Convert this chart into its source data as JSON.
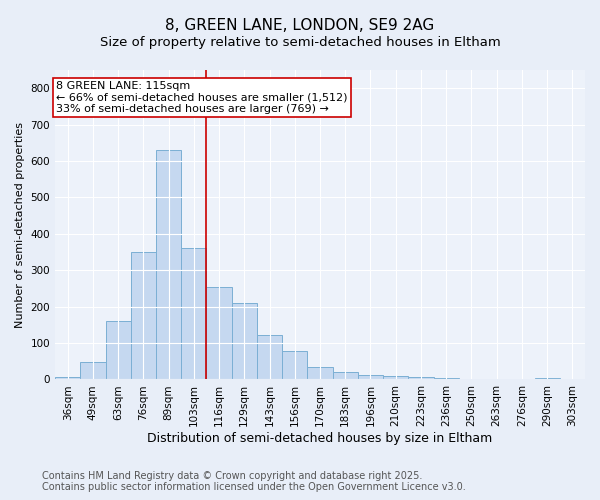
{
  "title1": "8, GREEN LANE, LONDON, SE9 2AG",
  "title2": "Size of property relative to semi-detached houses in Eltham",
  "xlabel": "Distribution of semi-detached houses by size in Eltham",
  "ylabel": "Number of semi-detached properties",
  "bar_labels": [
    "36sqm",
    "49sqm",
    "63sqm",
    "76sqm",
    "89sqm",
    "103sqm",
    "116sqm",
    "129sqm",
    "143sqm",
    "156sqm",
    "170sqm",
    "183sqm",
    "196sqm",
    "210sqm",
    "223sqm",
    "236sqm",
    "250sqm",
    "263sqm",
    "276sqm",
    "290sqm",
    "303sqm"
  ],
  "bar_values": [
    8,
    47,
    160,
    350,
    630,
    360,
    255,
    210,
    122,
    78,
    35,
    20,
    13,
    10,
    7,
    5,
    2,
    1,
    1,
    5,
    1
  ],
  "bar_color": "#c5d8f0",
  "bar_edge_color": "#7bafd4",
  "vline_index": 6,
  "vline_color": "#cc0000",
  "annotation_title": "8 GREEN LANE: 115sqm",
  "annotation_line1": "← 66% of semi-detached houses are smaller (1,512)",
  "annotation_line2": "33% of semi-detached houses are larger (769) →",
  "footnote1": "Contains HM Land Registry data © Crown copyright and database right 2025.",
  "footnote2": "Contains public sector information licensed under the Open Government Licence v3.0.",
  "ylim": [
    0,
    850
  ],
  "yticks": [
    0,
    100,
    200,
    300,
    400,
    500,
    600,
    700,
    800
  ],
  "bg_color": "#e8eef8",
  "plot_bg_color": "#edf2fa",
  "title1_fontsize": 11,
  "title2_fontsize": 9.5,
  "xlabel_fontsize": 9,
  "ylabel_fontsize": 8,
  "tick_fontsize": 7.5,
  "annotation_fontsize": 8,
  "footnote_fontsize": 7
}
